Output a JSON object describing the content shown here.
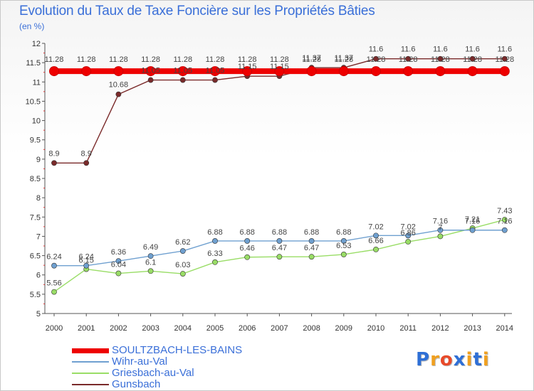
{
  "chart_data": {
    "type": "line",
    "title": "Evolution du Taux de Taxe Foncière sur les Propriétés Bâties",
    "ylabel": "(en %)",
    "xlabel": "",
    "ylim": [
      5,
      12
    ],
    "yticks": [
      "5",
      "5.5",
      "6",
      "6.5",
      "7",
      "7.5",
      "8",
      "8.5",
      "9",
      "9.5",
      "10",
      "10.5",
      "11",
      "11.5",
      "12"
    ],
    "x": [
      "2000",
      "2001",
      "2002",
      "2003",
      "2004",
      "2005",
      "2006",
      "2007",
      "2008",
      "2009",
      "2010",
      "2011",
      "2012",
      "2013",
      "2014"
    ],
    "series": [
      {
        "name": "SOULTZBACH-LES-BAINS",
        "color": "#ee0000",
        "values": [
          11.28,
          11.28,
          11.28,
          11.28,
          11.28,
          11.28,
          11.28,
          11.28,
          11.28,
          11.28,
          11.28,
          11.28,
          11.28,
          11.28,
          11.28
        ],
        "labels": [
          "11.28",
          "11.28",
          "11.28",
          "11.28",
          "11.28",
          "11.28",
          "11.28",
          "11.28",
          "11.28",
          "11.28",
          "11.28",
          "11.28",
          "11.28",
          "11.28",
          "11.28"
        ]
      },
      {
        "name": "Wihr-au-Val",
        "color": "#6fa0d0",
        "values": [
          6.24,
          6.24,
          6.36,
          6.49,
          6.62,
          6.88,
          6.88,
          6.88,
          6.88,
          6.88,
          7.02,
          7.02,
          7.16,
          7.16,
          7.16
        ],
        "labels": [
          "6.24",
          "6.24",
          "6.36",
          "6.49",
          "6.62",
          "6.88",
          "6.88",
          "6.88",
          "6.88",
          "6.88",
          "7.02",
          "7.02",
          "7.16",
          "7.16",
          "7.16"
        ]
      },
      {
        "name": "Griesbach-au-Val",
        "color": "#99dd66",
        "values": [
          5.56,
          6.15,
          6.04,
          6.1,
          6.03,
          6.33,
          6.46,
          6.47,
          6.47,
          6.53,
          6.66,
          6.86,
          7.0,
          7.21,
          7.43
        ],
        "labels": [
          "5.56",
          "6.15",
          "6.04",
          "6.1",
          "6.03",
          "6.33",
          "6.46",
          "6.47",
          "6.47",
          "6.53",
          "6.66",
          "6.86",
          "7",
          "7.21",
          "7.43"
        ]
      },
      {
        "name": "Gunsbach",
        "color": "#7a2a2a",
        "values": [
          8.9,
          8.9,
          10.68,
          11.05,
          11.05,
          11.05,
          11.15,
          11.15,
          11.37,
          11.37,
          11.6,
          11.6,
          11.6,
          11.6,
          11.6
        ],
        "labels": [
          "8.9",
          "8.9",
          "10.68",
          "11.05",
          "11.05",
          "11.05",
          "11.15",
          "11.15",
          "11.37",
          "11.37",
          "11.6",
          "11.6",
          "11.6",
          "11.6",
          "11.6"
        ]
      }
    ],
    "legend": "bottom-left",
    "grid": false
  },
  "logo": {
    "text": "Proxiti",
    "letters": [
      "P",
      "r",
      "o",
      "x",
      "i",
      "t",
      "i"
    ],
    "colors": [
      "#2e6fd6",
      "#f0a020",
      "#e84a2a",
      "#2e6fd6",
      "#f0a020",
      "#2e6fd6",
      "#f0a020"
    ]
  }
}
